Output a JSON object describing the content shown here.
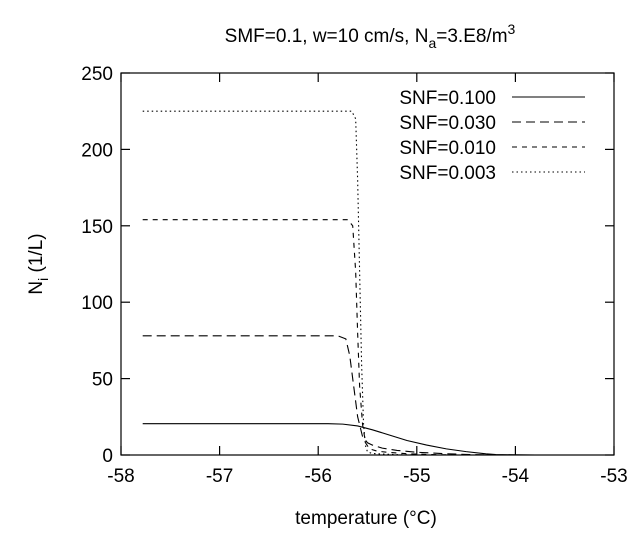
{
  "chart_data": {
    "type": "line",
    "title": {
      "prefix": "SMF=0.1, w=10 cm/s, N",
      "sub": "a",
      "mid": "=3.E8/m",
      "sup": "3"
    },
    "xlabel": "temperature (°C)",
    "ylabel": {
      "main": "N",
      "sub": "i",
      "rest": " (1/L)"
    },
    "xlim": [
      -58,
      -53
    ],
    "ylim": [
      0,
      250
    ],
    "xticks": [
      -58,
      -57,
      -56,
      -55,
      -54,
      -53
    ],
    "yticks": [
      0,
      50,
      100,
      150,
      200,
      250
    ],
    "grid": false,
    "legend_position": "top-right",
    "series": [
      {
        "name": "SNF=0.100",
        "dash": "solid",
        "x": [
          -57.78,
          -55.9,
          -55.75,
          -55.6,
          -55.45,
          -55.3,
          -55.1,
          -54.9,
          -54.7,
          -54.5,
          -54.3,
          -54.2,
          -54.0,
          -53.8
        ],
        "y": [
          20.5,
          20.5,
          20.2,
          19.0,
          16.5,
          13.5,
          9.5,
          6.5,
          4.0,
          2.2,
          0.8,
          0.3,
          0.1,
          0.0
        ]
      },
      {
        "name": "SNF=0.030",
        "dash": "long",
        "x": [
          -57.78,
          -55.8,
          -55.72,
          -55.68,
          -55.64,
          -55.6,
          -55.55,
          -55.5,
          -55.45,
          -55.35,
          -55.2,
          -55.0,
          -54.7,
          -54.4,
          -54.2
        ],
        "y": [
          78,
          78,
          76,
          65,
          45,
          25,
          12,
          8,
          6.5,
          4.5,
          3.0,
          1.8,
          0.8,
          0.2,
          0.0
        ]
      },
      {
        "name": "SNF=0.010",
        "dash": "medium",
        "x": [
          -57.78,
          -55.7,
          -55.65,
          -55.62,
          -55.6,
          -55.58,
          -55.55,
          -55.52,
          -55.48,
          -55.4,
          -55.3,
          -55.1,
          -54.8,
          -54.5
        ],
        "y": [
          154,
          154,
          150,
          120,
          80,
          45,
          20,
          8,
          4,
          2.5,
          1.8,
          0.8,
          0.2,
          0.0
        ]
      },
      {
        "name": "SNF=0.003",
        "dash": "dotted",
        "x": [
          -57.78,
          -55.66,
          -55.62,
          -55.6,
          -55.58,
          -55.56,
          -55.54,
          -55.52,
          -55.5,
          -55.45,
          -55.35,
          -55.2,
          -55.0
        ],
        "y": [
          225,
          225,
          220,
          180,
          120,
          60,
          20,
          6,
          2,
          1.0,
          0.6,
          0.2,
          0.0
        ]
      }
    ]
  }
}
